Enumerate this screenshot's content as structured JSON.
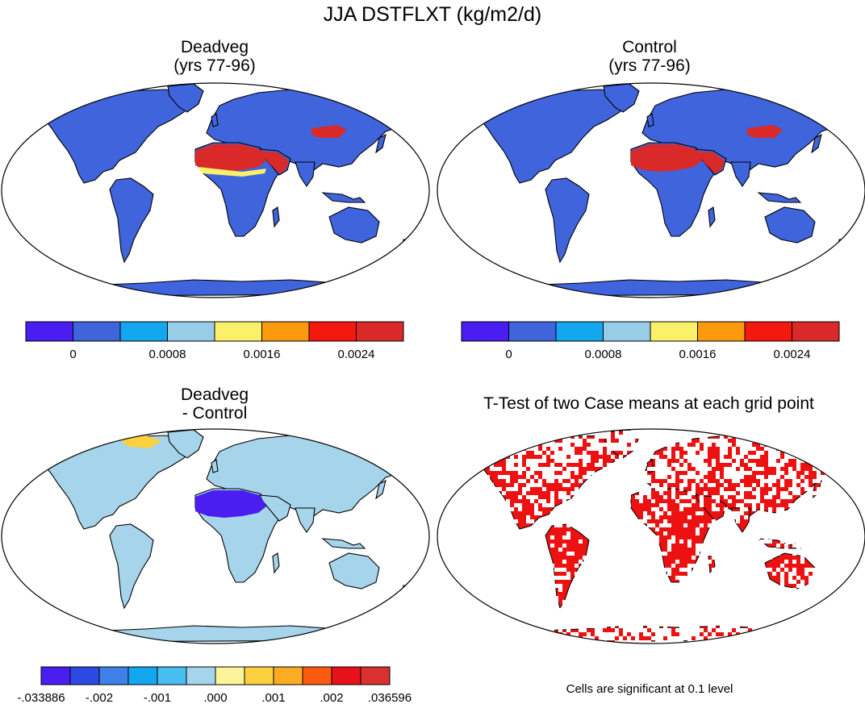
{
  "figure": {
    "title": "JJA DSTFLXT (kg/m2/d)",
    "note": "Cells are significant at 0.1 level"
  },
  "colors": {
    "ocean": "#ffffff",
    "coast": "#000000",
    "significant": "#ee1111"
  },
  "chart_data": [
    {
      "type": "heatmap",
      "title": "Deadveg",
      "subtitle": "(yrs 77-96)",
      "projection": "Robinson",
      "legend": {
        "placement": "bottom",
        "colors": [
          "#4a1df0",
          "#3f64dc",
          "#14a6ef",
          "#98cdea",
          "#fbf06a",
          "#fb9a0e",
          "#f4190e",
          "#d92a29"
        ],
        "tick_labels": [
          "0",
          "0.0008",
          "0.0016",
          "0.0024"
        ],
        "tick_values": [
          0,
          0.0008,
          0.0016,
          0.0024
        ]
      },
      "regions": [
        {
          "name": "global land",
          "color_index": 1
        },
        {
          "name": "Sahara",
          "color_index": 7
        },
        {
          "name": "Arabia",
          "color_index": 7
        },
        {
          "name": "Taklimakan/Gobi",
          "color_index": 7
        },
        {
          "name": "Sahel margin",
          "color_index": 4
        }
      ]
    },
    {
      "type": "heatmap",
      "title": "Control",
      "subtitle": "(yrs 77-96)",
      "projection": "Robinson",
      "legend": {
        "placement": "bottom",
        "colors": [
          "#4a1df0",
          "#3f64dc",
          "#14a6ef",
          "#98cdea",
          "#fbf06a",
          "#fb9a0e",
          "#f4190e",
          "#d92a29"
        ],
        "tick_labels": [
          "0",
          "0.0008",
          "0.0016",
          "0.0024"
        ],
        "tick_values": [
          0,
          0.0008,
          0.0016,
          0.0024
        ]
      },
      "regions": [
        {
          "name": "global land",
          "color_index": 1
        },
        {
          "name": "Sahara",
          "color_index": 7
        },
        {
          "name": "Arabia",
          "color_index": 7
        },
        {
          "name": "Taklimakan/Gobi",
          "color_index": 7
        }
      ]
    },
    {
      "type": "heatmap",
      "title": "Deadveg",
      "subtitle": "- Control",
      "projection": "Robinson",
      "legend": {
        "placement": "bottom",
        "colors": [
          "#4a1df0",
          "#2d49e3",
          "#3f7fe8",
          "#14a6ef",
          "#48bdf0",
          "#a6d4ea",
          "#fbf49a",
          "#fdd040",
          "#fcac22",
          "#fb5a10",
          "#e8101a",
          "#d93030"
        ],
        "tick_labels": [
          "-.033886",
          "-.002",
          "-.001",
          ".000",
          ".001",
          ".002",
          ".036596"
        ],
        "tick_values": [
          -0.033886,
          -0.002,
          -0.001,
          0.0,
          0.001,
          0.002,
          0.036596
        ]
      },
      "regions": [
        {
          "name": "global land",
          "color_index": 5
        },
        {
          "name": "Sahara",
          "color_index": 0
        },
        {
          "name": "Arctic islands",
          "color_index": 7
        }
      ]
    },
    {
      "type": "heatmap",
      "title": "T-Test of two Case means at each grid point",
      "projection": "Robinson",
      "regions": [
        {
          "name": "significant cells",
          "color": "#ee1111"
        }
      ]
    }
  ]
}
